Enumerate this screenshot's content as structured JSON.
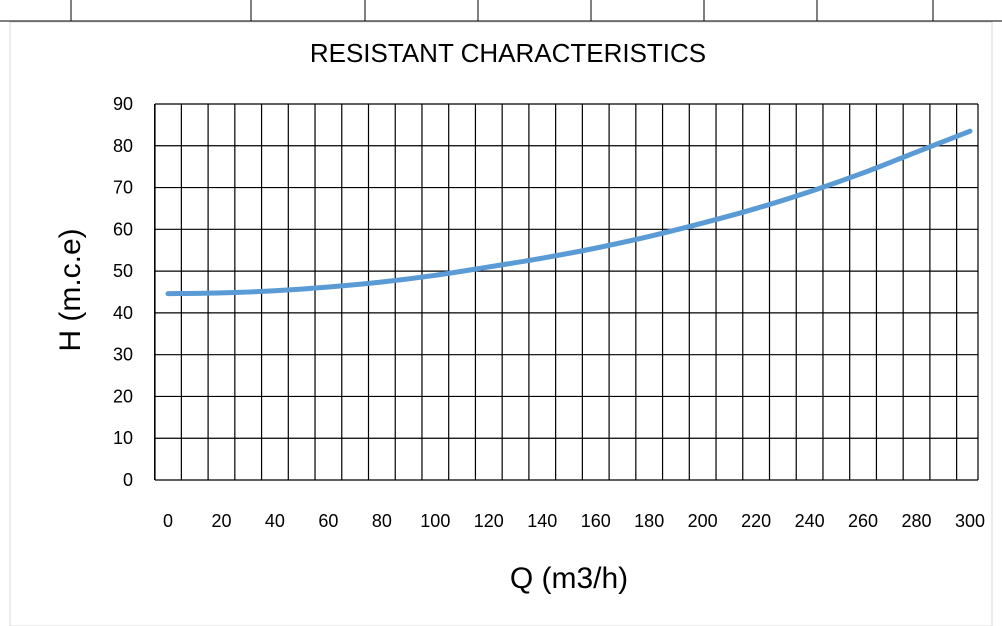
{
  "chart_data": {
    "type": "line",
    "title": "RESISTANT CHARACTERISTICS",
    "xlabel": "Q (m3/h)",
    "ylabel": "H (m.c.e)",
    "xlim": [
      0,
      300
    ],
    "ylim": [
      0,
      90
    ],
    "x_ticks": [
      "0",
      "20",
      "40",
      "60",
      "80",
      "100",
      "120",
      "140",
      "160",
      "180",
      "200",
      "220",
      "240",
      "260",
      "280",
      "300"
    ],
    "y_ticks": [
      "0",
      "10",
      "20",
      "30",
      "40",
      "50",
      "60",
      "70",
      "80",
      "90"
    ],
    "grid": true,
    "legend": "none",
    "line_color": "#5b9bd5",
    "series": [
      {
        "x": [
          0,
          20,
          40,
          60,
          80,
          100,
          120,
          140,
          160,
          180,
          200,
          220,
          240,
          260,
          280,
          300
        ],
        "values": [
          44.6,
          44.8,
          45.3,
          46.2,
          47.4,
          49.0,
          51.0,
          53.1,
          55.5,
          58.3,
          61.5,
          65.0,
          69.0,
          73.5,
          78.5,
          83.5
        ]
      }
    ]
  }
}
